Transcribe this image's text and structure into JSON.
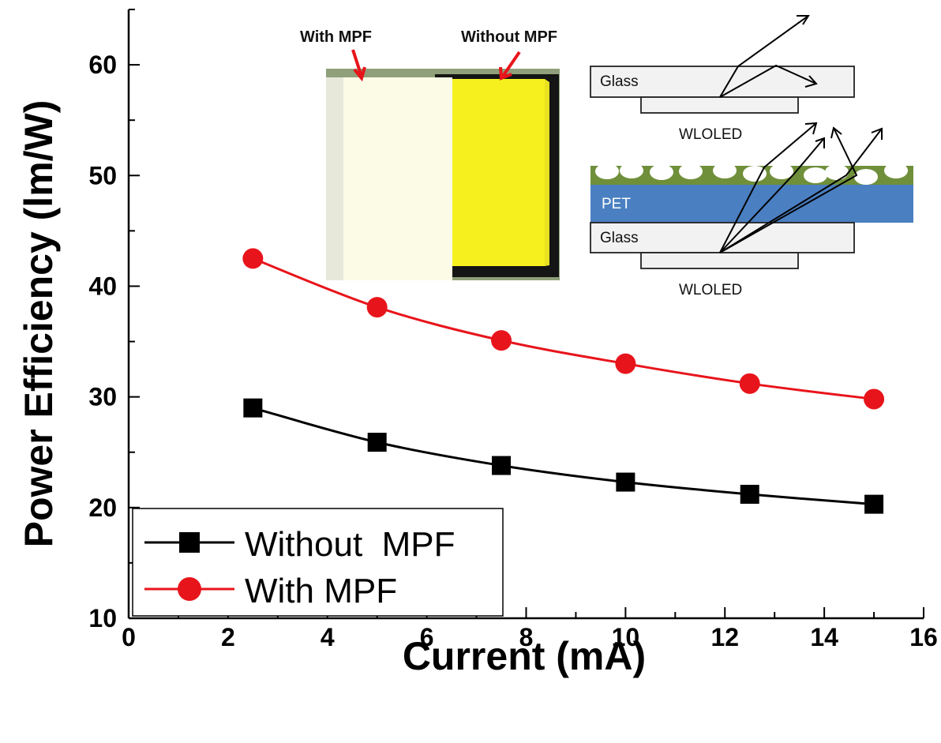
{
  "chart_data": {
    "type": "line",
    "xlabel": "Current (mA)",
    "ylabel": "Power Efficiency (lm/W)",
    "xlim": [
      0,
      16
    ],
    "ylim": [
      10,
      65
    ],
    "xticks": [
      "0",
      "2",
      "4",
      "6",
      "8",
      "10",
      "12",
      "14",
      "16"
    ],
    "yticks": [
      "10",
      "20",
      "30",
      "40",
      "50",
      "60"
    ],
    "grid": false,
    "legend_position": "bottom-left",
    "x": [
      2.5,
      5,
      7.5,
      10,
      12.5,
      15
    ],
    "series": [
      {
        "name": "Without  MPF",
        "marker": "square",
        "color": "#000000",
        "values": [
          29.0,
          25.9,
          23.8,
          22.3,
          21.2,
          20.3
        ]
      },
      {
        "name": "With MPF",
        "marker": "circle",
        "color": "#e8141b",
        "values": [
          42.5,
          38.1,
          35.1,
          33.0,
          31.2,
          29.8
        ]
      }
    ]
  },
  "inset_photo": {
    "label_with": "With MPF",
    "label_without": "Without MPF",
    "arrow_color": "#e8141b"
  },
  "inset_diagram": {
    "glass_label": "Glass",
    "oled_label": "WLOLED",
    "pet_label": "PET",
    "glass_label_2": "Glass",
    "oled_label_2": "WLOLED",
    "pet_color": "#4a7fc1",
    "film_color": "#6f8f3a"
  }
}
